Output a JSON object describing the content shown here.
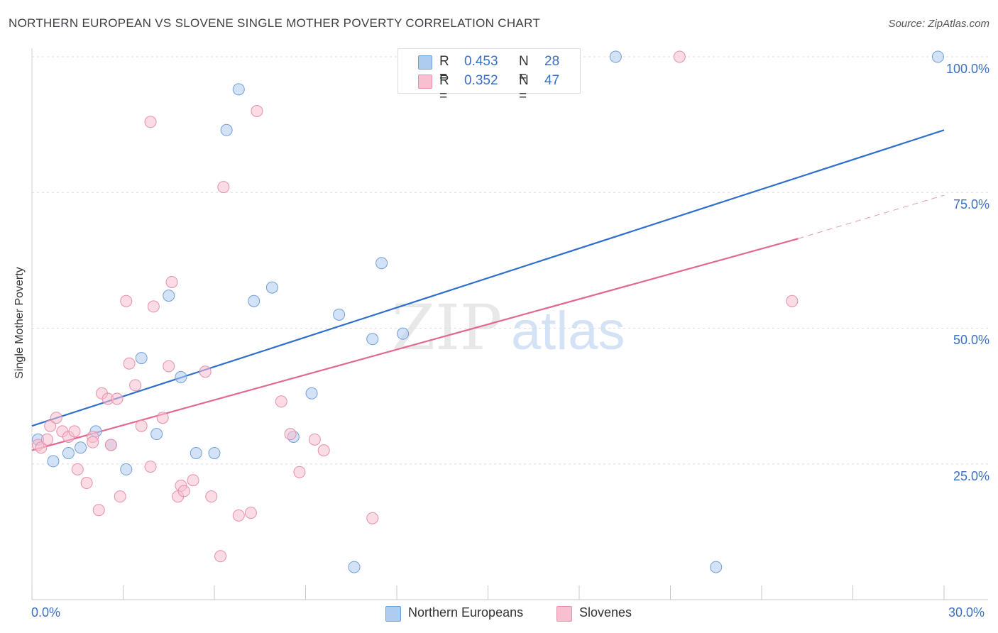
{
  "title": "NORTHERN EUROPEAN VS SLOVENE SINGLE MOTHER POVERTY CORRELATION CHART",
  "source": "Source: ZipAtlas.com",
  "watermark": {
    "zip": "ZIP",
    "atlas": "atlas"
  },
  "stats": [
    {
      "r_label": "R =",
      "r_value": "0.453",
      "n_label": "N =",
      "n_value": "28",
      "color": "#aecbf0"
    },
    {
      "r_label": "R =",
      "r_value": "0.352",
      "n_label": "N =",
      "n_value": "47",
      "color": "#f7bfd0"
    }
  ],
  "legend": [
    {
      "label": "Northern Europeans",
      "color": "#aecbf0"
    },
    {
      "label": "Slovenes",
      "color": "#f7bfd0"
    }
  ],
  "chart_data": {
    "type": "scatter",
    "ylabel": "Single Mother Poverty",
    "xlim": [
      0,
      30
    ],
    "ylim": [
      0,
      100
    ],
    "x_tick_labels": [
      "0.0%",
      "30.0%"
    ],
    "y_tick_labels": [
      "100.0%",
      "75.0%",
      "50.0%",
      "25.0%"
    ],
    "y_ticks": [
      100,
      75,
      50,
      25
    ],
    "grid": true,
    "series": [
      {
        "name": "Northern Europeans",
        "color": "#aecbf0",
        "stroke": "#6f9fd8",
        "trend_color": "#2f6fcc",
        "trend": {
          "x0": 0,
          "y0": 32,
          "x1": 30,
          "y1": 86.5
        },
        "points": [
          [
            0.2,
            29.5
          ],
          [
            0.7,
            25.5
          ],
          [
            1.2,
            27
          ],
          [
            1.6,
            28
          ],
          [
            2.1,
            31
          ],
          [
            2.6,
            28.5
          ],
          [
            3.1,
            24
          ],
          [
            3.6,
            44.5
          ],
          [
            4.1,
            30.5
          ],
          [
            4.5,
            56
          ],
          [
            4.9,
            41
          ],
          [
            5.4,
            27
          ],
          [
            6.0,
            27
          ],
          [
            6.4,
            86.5
          ],
          [
            6.8,
            94
          ],
          [
            7.3,
            55
          ],
          [
            7.9,
            57.5
          ],
          [
            8.6,
            30
          ],
          [
            9.2,
            38
          ],
          [
            10.1,
            52.5
          ],
          [
            10.6,
            6
          ],
          [
            11.2,
            48
          ],
          [
            11.5,
            62
          ],
          [
            12.2,
            49
          ],
          [
            13.5,
            100
          ],
          [
            19.2,
            100
          ],
          [
            22.5,
            6
          ],
          [
            29.8,
            100
          ]
        ]
      },
      {
        "name": "Slovenes",
        "color": "#f7bfd0",
        "stroke": "#e68fab",
        "trend_color": "#e06893",
        "trend": {
          "x0": 0,
          "y0": 27.5,
          "x1": 25.2,
          "y1": 66.5
        },
        "trend_ext": {
          "x0": 25.2,
          "y0": 66.5,
          "x1": 30,
          "y1": 74.5
        },
        "points": [
          [
            0.2,
            28.5
          ],
          [
            0.3,
            28
          ],
          [
            0.5,
            29.5
          ],
          [
            0.6,
            32
          ],
          [
            0.8,
            33.5
          ],
          [
            1.0,
            31
          ],
          [
            1.2,
            30
          ],
          [
            1.4,
            31
          ],
          [
            1.5,
            24
          ],
          [
            1.8,
            21.5
          ],
          [
            2.0,
            30
          ],
          [
            2.0,
            29
          ],
          [
            2.2,
            16.5
          ],
          [
            2.3,
            38
          ],
          [
            2.5,
            37
          ],
          [
            2.6,
            28.5
          ],
          [
            2.8,
            37
          ],
          [
            2.9,
            19
          ],
          [
            3.1,
            55
          ],
          [
            3.2,
            43.5
          ],
          [
            3.4,
            39.5
          ],
          [
            3.6,
            32
          ],
          [
            3.9,
            88
          ],
          [
            3.9,
            24.5
          ],
          [
            4.0,
            54
          ],
          [
            4.3,
            33.5
          ],
          [
            4.5,
            43
          ],
          [
            4.6,
            58.5
          ],
          [
            4.8,
            19
          ],
          [
            4.9,
            21
          ],
          [
            5.0,
            20
          ],
          [
            5.3,
            22
          ],
          [
            5.7,
            42
          ],
          [
            5.9,
            19
          ],
          [
            6.2,
            8
          ],
          [
            6.3,
            76
          ],
          [
            6.8,
            15.5
          ],
          [
            7.2,
            16
          ],
          [
            7.4,
            90
          ],
          [
            8.2,
            36.5
          ],
          [
            8.5,
            30.5
          ],
          [
            8.8,
            23.5
          ],
          [
            9.3,
            29.5
          ],
          [
            9.6,
            27.5
          ],
          [
            11.2,
            15
          ],
          [
            21.3,
            100
          ],
          [
            25.0,
            55
          ]
        ]
      }
    ]
  }
}
